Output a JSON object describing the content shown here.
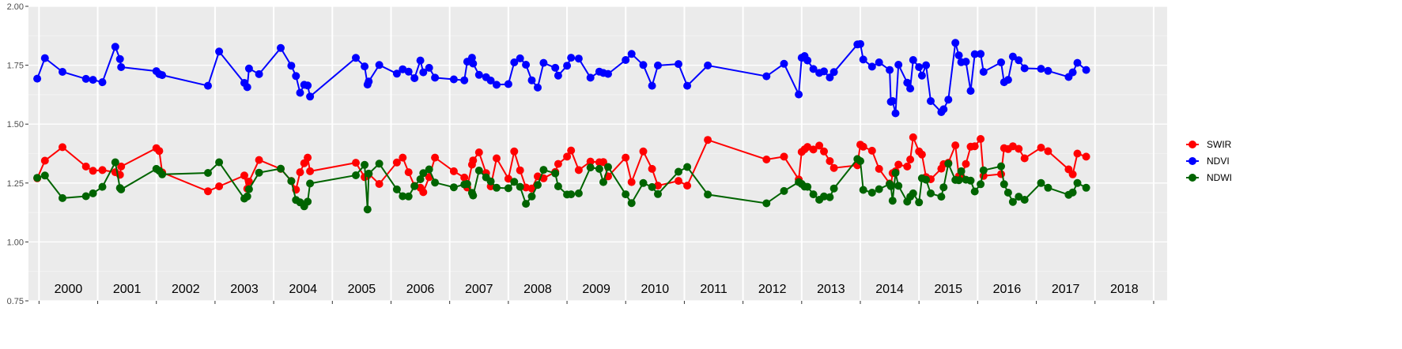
{
  "chart_data": {
    "type": "line",
    "title": "",
    "xlabel": "",
    "ylabel": "",
    "ylim": [
      0.75,
      2.0
    ],
    "yticks": [
      "0.75",
      "1.00",
      "1.25",
      "1.50",
      "1.75",
      "2.00"
    ],
    "xlim": [
      1999.82,
      2019.23
    ],
    "year_labels": [
      "2000",
      "2001",
      "2002",
      "2003",
      "2004",
      "2005",
      "2006",
      "2007",
      "2008",
      "2009",
      "2010",
      "2011",
      "2012",
      "2013",
      "2014",
      "2015",
      "2016",
      "2017",
      "2018"
    ],
    "grid": true,
    "legend_position": "right",
    "series": [
      {
        "name": "SWIR",
        "color": "#ff0000",
        "x": [
          1999.97,
          2000.1,
          2000.4,
          2000.8,
          2000.92,
          2001.08,
          2001.3,
          2001.38,
          2001.4,
          2002.0,
          2002.05,
          2002.1,
          2002.88,
          2003.07,
          2003.5,
          2003.55,
          2003.58,
          2003.75,
          2004.12,
          2004.3,
          2004.38,
          2004.45,
          2004.52,
          2004.58,
          2004.62,
          2005.4,
          2005.55,
          2005.6,
          2005.62,
          2005.8,
          2006.1,
          2006.2,
          2006.3,
          2006.4,
          2006.5,
          2006.55,
          2006.65,
          2006.75,
          2007.07,
          2007.25,
          2007.3,
          2007.38,
          2007.4,
          2007.5,
          2007.62,
          2007.7,
          2007.8,
          2008.0,
          2008.1,
          2008.2,
          2008.3,
          2008.4,
          2008.5,
          2008.6,
          2008.8,
          2008.85,
          2009.0,
          2009.07,
          2009.2,
          2009.4,
          2009.55,
          2009.62,
          2009.7,
          2010.0,
          2010.1,
          2010.3,
          2010.45,
          2010.55
        ],
        "y": [
          1.27,
          1.345,
          1.402,
          1.32,
          1.302,
          1.305,
          1.296,
          1.285,
          1.32,
          1.398,
          1.386,
          1.295,
          1.215,
          1.236,
          1.282,
          1.226,
          1.256,
          1.348,
          1.31,
          1.259,
          1.222,
          1.296,
          1.334,
          1.358,
          1.3,
          1.336,
          1.275,
          1.282,
          1.289,
          1.246,
          1.337,
          1.358,
          1.296,
          1.238,
          1.23,
          1.211,
          1.275,
          1.358,
          1.3,
          1.273,
          1.231,
          1.328,
          1.346,
          1.38,
          1.292,
          1.236,
          1.355,
          1.268,
          1.384,
          1.304,
          1.231,
          1.227,
          1.278,
          1.27,
          1.297,
          1.331,
          1.362,
          1.388,
          1.305,
          1.341,
          1.338,
          1.339,
          1.278,
          1.358,
          1.254,
          1.384,
          1.31,
          1.239
        ]
      },
      {
        "name": "NDVI",
        "color": "#0000ff",
        "x": [
          1999.97,
          2000.1,
          2000.4,
          2000.8,
          2000.92,
          2001.08,
          2001.3,
          2001.38,
          2001.4,
          2002.0,
          2002.05,
          2002.1,
          2002.88,
          2003.07,
          2003.5,
          2003.55,
          2003.58,
          2003.75,
          2004.12,
          2004.3,
          2004.38,
          2004.45,
          2004.52,
          2004.58,
          2004.62,
          2005.4,
          2005.55,
          2005.6,
          2005.62,
          2005.8,
          2006.1,
          2006.2,
          2006.3,
          2006.4,
          2006.5,
          2006.55,
          2006.65,
          2006.75,
          2007.07,
          2007.25,
          2007.3,
          2007.38,
          2007.4,
          2007.5,
          2007.62,
          2007.7,
          2007.8,
          2008.0,
          2008.1,
          2008.2,
          2008.3,
          2008.4,
          2008.5,
          2008.6,
          2008.8,
          2008.85,
          2009.0,
          2009.07,
          2009.2,
          2009.4,
          2009.55,
          2009.62,
          2009.7,
          2010.0,
          2010.1,
          2010.3,
          2010.45,
          2010.55
        ],
        "y": [
          1.693,
          1.78,
          1.722,
          1.692,
          1.688,
          1.678,
          1.828,
          1.776,
          1.742,
          1.725,
          1.712,
          1.708,
          1.663,
          1.808,
          1.675,
          1.657,
          1.736,
          1.712,
          1.823,
          1.748,
          1.704,
          1.633,
          1.667,
          1.664,
          1.617,
          1.781,
          1.745,
          1.668,
          1.681,
          1.751,
          1.714,
          1.733,
          1.723,
          1.695,
          1.77,
          1.72,
          1.739,
          1.697,
          1.69,
          1.686,
          1.765,
          1.782,
          1.757,
          1.709,
          1.699,
          1.685,
          1.667,
          1.67,
          1.762,
          1.779,
          1.752,
          1.686,
          1.655,
          1.76,
          1.739,
          1.706,
          1.748,
          1.782,
          1.778,
          1.697,
          1.723,
          1.717,
          1.713,
          1.772,
          1.798,
          1.751,
          1.663,
          1.749
        ]
      },
      {
        "name": "NDWI",
        "color": "#006400",
        "x": [
          1999.97,
          2000.1,
          2000.4,
          2000.8,
          2000.92,
          2001.08,
          2001.3,
          2001.38,
          2001.4,
          2002.0,
          2002.05,
          2002.1,
          2002.88,
          2003.07,
          2003.5,
          2003.55,
          2003.58,
          2003.75,
          2004.12,
          2004.3,
          2004.38,
          2004.45,
          2004.52,
          2004.58,
          2004.62,
          2005.4,
          2005.55,
          2005.6,
          2005.62,
          2005.8,
          2006.1,
          2006.2,
          2006.3,
          2006.4,
          2006.5,
          2006.55,
          2006.65,
          2006.75,
          2007.07,
          2007.25,
          2007.3,
          2007.38,
          2007.4,
          2007.5,
          2007.62,
          2007.7,
          2007.8,
          2008.0,
          2008.1,
          2008.2,
          2008.3,
          2008.4,
          2008.5,
          2008.6,
          2008.8,
          2008.85,
          2009.0,
          2009.07,
          2009.2,
          2009.4,
          2009.55,
          2009.62,
          2009.7,
          2010.0,
          2010.1,
          2010.3,
          2010.45,
          2010.55
        ],
        "y": [
          1.272,
          1.282,
          1.186,
          1.194,
          1.206,
          1.234,
          1.338,
          1.229,
          1.223,
          1.31,
          1.302,
          1.287,
          1.293,
          1.338,
          1.184,
          1.193,
          1.224,
          1.294,
          1.311,
          1.258,
          1.178,
          1.168,
          1.151,
          1.171,
          1.248,
          1.283,
          1.327,
          1.138,
          1.29,
          1.332,
          1.223,
          1.194,
          1.193,
          1.237,
          1.266,
          1.292,
          1.308,
          1.252,
          1.232,
          1.244,
          1.246,
          1.208,
          1.197,
          1.303,
          1.274,
          1.257,
          1.23,
          1.228,
          1.255,
          1.234,
          1.162,
          1.193,
          1.242,
          1.306,
          1.291,
          1.236,
          1.201,
          1.202,
          1.206,
          1.316,
          1.31,
          1.254,
          1.318,
          1.202,
          1.165,
          1.25,
          1.233,
          1.203
        ]
      }
    ]
  },
  "extension": {
    "x": [
      2010.9,
      2011.05,
      2011.4,
      2012.4,
      2012.7,
      2012.95,
      2013.0,
      2013.05,
      2013.1,
      2013.2,
      2013.3,
      2013.38,
      2013.48,
      2013.55,
      2013.95,
      2014.0,
      2014.05,
      2014.2,
      2014.32,
      2014.5,
      2014.52,
      2014.55,
      2014.6,
      2014.65,
      2014.8,
      2014.85,
      2014.9,
      2015.0,
      2015.05,
      2015.12,
      2015.2,
      2015.38,
      2015.42,
      2015.5,
      2015.62,
      2015.68,
      2015.72,
      2015.8,
      2015.88,
      2015.95,
      2016.05,
      2016.1,
      2016.4,
      2016.45,
      2016.52,
      2016.6,
      2016.7,
      2016.8,
      2017.08,
      2017.2,
      2017.55,
      2017.62,
      2017.7,
      2017.85
    ],
    "SWIR": [
      1.259,
      1.239,
      1.433,
      1.35,
      1.362,
      1.265,
      1.382,
      1.393,
      1.403,
      1.392,
      1.409,
      1.384,
      1.343,
      1.314,
      1.325,
      1.413,
      1.404,
      1.387,
      1.31,
      1.248,
      1.238,
      1.292,
      1.3,
      1.328,
      1.32,
      1.35,
      1.444,
      1.384,
      1.371,
      1.275,
      1.266,
      1.311,
      1.33,
      1.336,
      1.41,
      1.279,
      1.277,
      1.331,
      1.404,
      1.406,
      1.437,
      1.28,
      1.288,
      1.398,
      1.394,
      1.406,
      1.395,
      1.355,
      1.4,
      1.385,
      1.308,
      1.287,
      1.375,
      1.362
    ],
    "NDVI": [
      1.755,
      1.663,
      1.749,
      1.703,
      1.756,
      1.626,
      1.782,
      1.789,
      1.77,
      1.734,
      1.717,
      1.724,
      1.698,
      1.721,
      1.838,
      1.84,
      1.774,
      1.744,
      1.762,
      1.73,
      1.595,
      1.598,
      1.546,
      1.752,
      1.676,
      1.651,
      1.772,
      1.742,
      1.706,
      1.75,
      1.598,
      1.551,
      1.563,
      1.604,
      1.845,
      1.792,
      1.763,
      1.765,
      1.641,
      1.797,
      1.798,
      1.722,
      1.762,
      1.678,
      1.688,
      1.787,
      1.771,
      1.737,
      1.735,
      1.726,
      1.7,
      1.72,
      1.76,
      1.73
    ],
    "NDWI": [
      1.298,
      1.318,
      1.201,
      1.164,
      1.216,
      1.254,
      1.246,
      1.235,
      1.234,
      1.202,
      1.179,
      1.193,
      1.19,
      1.227,
      1.352,
      1.343,
      1.221,
      1.209,
      1.224,
      1.246,
      1.237,
      1.175,
      1.293,
      1.238,
      1.171,
      1.192,
      1.206,
      1.168,
      1.27,
      1.264,
      1.206,
      1.192,
      1.232,
      1.332,
      1.263,
      1.262,
      1.3,
      1.264,
      1.26,
      1.214,
      1.245,
      1.304,
      1.321,
      1.245,
      1.209,
      1.17,
      1.192,
      1.179,
      1.25,
      1.23,
      1.2,
      1.21,
      1.25,
      1.23
    ]
  }
}
